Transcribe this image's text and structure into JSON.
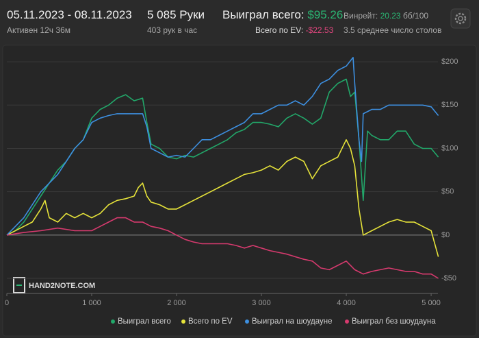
{
  "header": {
    "date_range": "05.11.2023 - 08.11.2023",
    "active": "Активен 12ч 36м",
    "hands": "5 085 Руки",
    "hands_per_hour": "403 рук в час",
    "won_label": "Выиграл всего:",
    "won_value": "$95.26",
    "ev_label": "Всего по EV:",
    "ev_value": "-$22.53",
    "winrate_label": "Винрейт:",
    "winrate_value": "20.23",
    "winrate_unit": "бб/100",
    "tables": "3.5 среднее число столов"
  },
  "watermark": "HAND2NOTE.COM",
  "chart_data": {
    "type": "line",
    "grid": true,
    "xlim": [
      0,
      5085
    ],
    "ylim": [
      -65,
      208
    ],
    "xticks": [
      0,
      {
        "value": 1000,
        "label": "1 000"
      },
      {
        "value": 2000,
        "label": "2 000"
      },
      {
        "value": 3000,
        "label": "3 000"
      },
      {
        "value": 4000,
        "label": "4 000"
      },
      {
        "value": 5000,
        "label": "5 000"
      }
    ],
    "yticks": [
      {
        "value": -50,
        "label": "-$50"
      },
      {
        "value": 0,
        "label": "$0"
      },
      {
        "value": 50,
        "label": "$50"
      },
      {
        "value": 100,
        "label": "$100"
      },
      {
        "value": 150,
        "label": "$150"
      },
      {
        "value": 200,
        "label": "$200"
      }
    ],
    "series": [
      {
        "name": "Выиграл всего",
        "color": "#22a86a",
        "x": [
          0,
          100,
          200,
          300,
          400,
          500,
          600,
          700,
          800,
          900,
          1000,
          1100,
          1200,
          1300,
          1400,
          1500,
          1600,
          1650,
          1700,
          1800,
          1900,
          2000,
          2100,
          2200,
          2300,
          2400,
          2500,
          2600,
          2700,
          2800,
          2900,
          3000,
          3100,
          3200,
          3300,
          3400,
          3500,
          3600,
          3700,
          3800,
          3900,
          4000,
          4050,
          4100,
          4150,
          4200,
          4250,
          4300,
          4400,
          4500,
          4600,
          4700,
          4800,
          4900,
          5000,
          5085
        ],
        "values": [
          0,
          5,
          15,
          30,
          45,
          60,
          75,
          85,
          100,
          110,
          135,
          145,
          150,
          158,
          162,
          155,
          158,
          130,
          105,
          100,
          90,
          88,
          92,
          90,
          95,
          100,
          105,
          110,
          118,
          122,
          130,
          130,
          128,
          125,
          135,
          140,
          135,
          128,
          135,
          165,
          175,
          180,
          160,
          165,
          110,
          40,
          120,
          115,
          110,
          110,
          120,
          120,
          105,
          100,
          100,
          90
        ]
      },
      {
        "name": "Всего по EV",
        "color": "#e6e33a",
        "x": [
          0,
          200,
          300,
          400,
          450,
          500,
          600,
          700,
          800,
          900,
          1000,
          1100,
          1200,
          1300,
          1400,
          1500,
          1550,
          1600,
          1650,
          1700,
          1800,
          1900,
          2000,
          2100,
          2200,
          2300,
          2400,
          2500,
          2600,
          2700,
          2800,
          2900,
          3000,
          3100,
          3200,
          3300,
          3400,
          3500,
          3600,
          3700,
          3800,
          3900,
          4000,
          4050,
          4100,
          4150,
          4200,
          4300,
          4400,
          4500,
          4600,
          4700,
          4800,
          4900,
          5000,
          5085
        ],
        "values": [
          0,
          10,
          15,
          30,
          40,
          20,
          15,
          25,
          20,
          25,
          20,
          25,
          35,
          40,
          42,
          45,
          55,
          60,
          45,
          38,
          35,
          30,
          30,
          35,
          40,
          45,
          50,
          55,
          60,
          65,
          70,
          72,
          75,
          80,
          75,
          85,
          90,
          85,
          65,
          80,
          85,
          90,
          110,
          100,
          80,
          30,
          0,
          5,
          10,
          15,
          18,
          15,
          15,
          10,
          5,
          -25
        ]
      },
      {
        "name": "Выиграл на шоудауне",
        "color": "#3d8fe0",
        "x": [
          0,
          200,
          400,
          600,
          800,
          900,
          1000,
          1100,
          1200,
          1300,
          1400,
          1500,
          1600,
          1650,
          1700,
          1800,
          1900,
          2000,
          2100,
          2200,
          2300,
          2400,
          2500,
          2600,
          2700,
          2800,
          2900,
          3000,
          3100,
          3200,
          3300,
          3400,
          3500,
          3600,
          3700,
          3800,
          3900,
          4000,
          4080,
          4100,
          4150,
          4180,
          4200,
          4300,
          4400,
          4500,
          4600,
          4700,
          4800,
          4900,
          5000,
          5085
        ],
        "values": [
          0,
          20,
          50,
          70,
          100,
          110,
          130,
          135,
          138,
          140,
          140,
          140,
          140,
          125,
          100,
          95,
          90,
          92,
          90,
          100,
          110,
          110,
          115,
          120,
          125,
          130,
          140,
          140,
          145,
          150,
          150,
          155,
          150,
          160,
          175,
          180,
          190,
          195,
          205,
          175,
          110,
          85,
          140,
          145,
          145,
          150,
          150,
          150,
          150,
          150,
          148,
          138
        ]
      },
      {
        "name": "Выиграл без шоудауна",
        "color": "#d63a6e",
        "x": [
          0,
          200,
          400,
          600,
          800,
          1000,
          1100,
          1200,
          1300,
          1400,
          1500,
          1600,
          1700,
          1800,
          1900,
          2000,
          2100,
          2200,
          2300,
          2400,
          2500,
          2600,
          2700,
          2800,
          2900,
          3000,
          3100,
          3200,
          3300,
          3400,
          3500,
          3600,
          3700,
          3800,
          3900,
          4000,
          4050,
          4100,
          4200,
          4300,
          4400,
          4500,
          4600,
          4700,
          4800,
          4900,
          5000,
          5085
        ],
        "values": [
          0,
          3,
          5,
          8,
          5,
          5,
          10,
          15,
          20,
          20,
          15,
          15,
          10,
          8,
          5,
          0,
          -5,
          -8,
          -10,
          -10,
          -10,
          -10,
          -12,
          -15,
          -12,
          -15,
          -18,
          -20,
          -22,
          -25,
          -28,
          -30,
          -38,
          -40,
          -35,
          -30,
          -35,
          -40,
          -45,
          -42,
          -40,
          -38,
          -40,
          -42,
          -42,
          -45,
          -45,
          -50
        ]
      }
    ]
  }
}
